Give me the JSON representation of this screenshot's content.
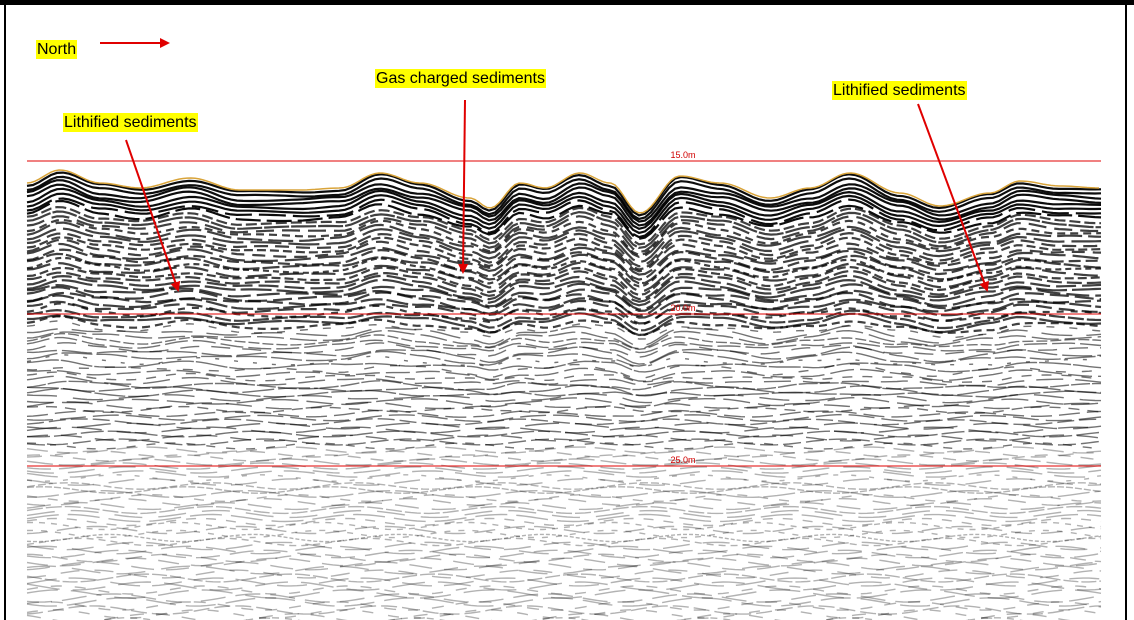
{
  "annotations": {
    "north": "North",
    "gas": "Gas charged sediments",
    "lithified_left": "Lithified sediments",
    "lithified_right": "Lithified sediments"
  },
  "depth_lines": [
    "15.0m",
    "20.0m",
    "25.0m"
  ]
}
